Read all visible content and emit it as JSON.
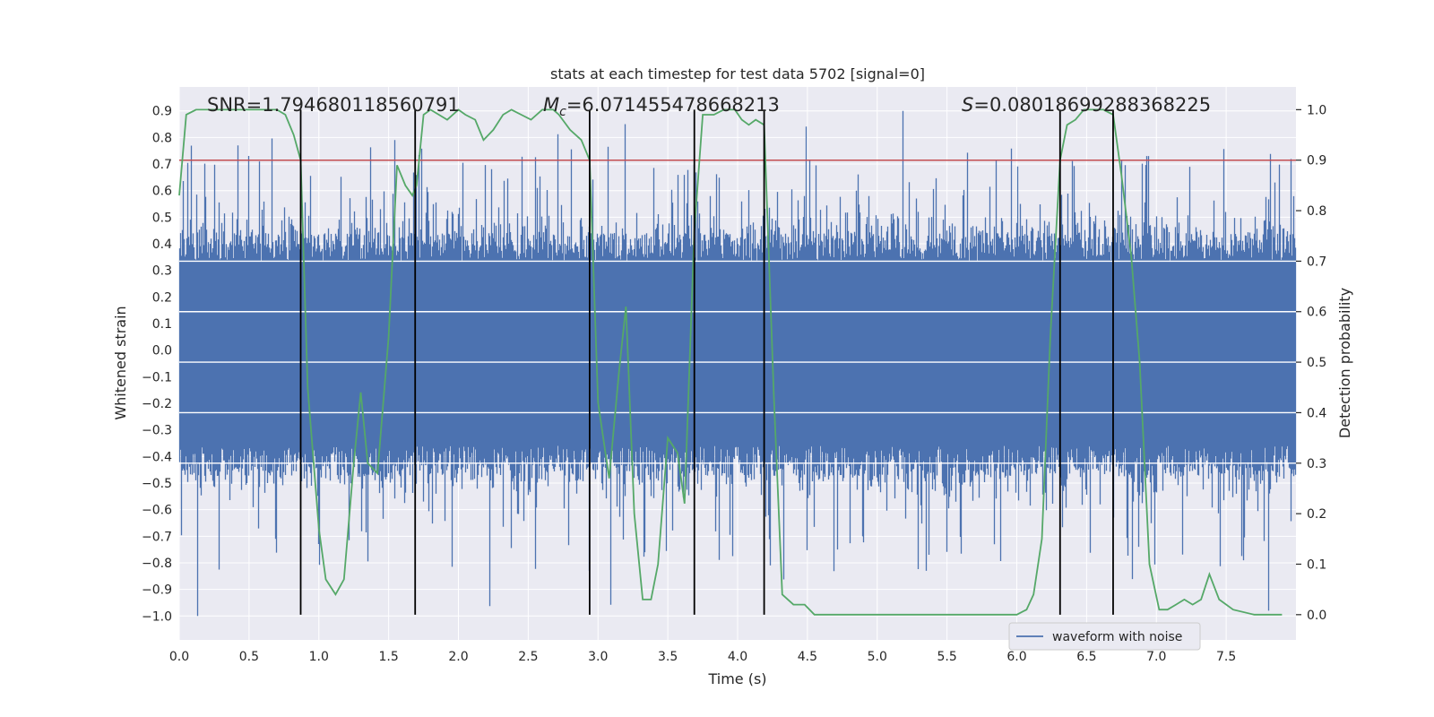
{
  "chart_data": {
    "type": "line",
    "title": "stats at each timestep for test data 5702 [signal=0]",
    "xlabel": "Time (s)",
    "ylabel_left": "Whitened strain",
    "ylabel_right": "Detection probability",
    "xlim": [
      0.0,
      8.0
    ],
    "ylim_left": [
      -1.09,
      0.99
    ],
    "ylim_right": [
      -0.05,
      1.045
    ],
    "x_ticks": [
      "0.0",
      "0.5",
      "1.0",
      "1.5",
      "2.0",
      "2.5",
      "3.0",
      "3.5",
      "4.0",
      "4.5",
      "5.0",
      "5.5",
      "6.0",
      "6.5",
      "7.0",
      "7.5"
    ],
    "x_tick_values": [
      0.0,
      0.5,
      1.0,
      1.5,
      2.0,
      2.5,
      3.0,
      3.5,
      4.0,
      4.5,
      5.0,
      5.5,
      6.0,
      6.5,
      7.0,
      7.5
    ],
    "y_left_ticks": [
      "0.9",
      "0.8",
      "0.7",
      "0.6",
      "0.5",
      "0.4",
      "0.3",
      "0.2",
      "0.1",
      "0.0",
      "−0.1",
      "−0.2",
      "−0.3",
      "−0.4",
      "−0.5",
      "−0.6",
      "−0.7",
      "−0.8",
      "−0.9",
      "−1.0"
    ],
    "y_left_tick_values": [
      0.9,
      0.8,
      0.7,
      0.6,
      0.5,
      0.4,
      0.3,
      0.2,
      0.1,
      0.0,
      -0.1,
      -0.2,
      -0.3,
      -0.4,
      -0.5,
      -0.6,
      -0.7,
      -0.8,
      -0.9,
      -1.0
    ],
    "y_right_ticks": [
      "1.0",
      "0.9",
      "0.8",
      "0.7",
      "0.6",
      "0.5",
      "0.4",
      "0.3",
      "0.2",
      "0.1",
      "0.0"
    ],
    "y_right_tick_values": [
      1.0,
      0.9,
      0.8,
      0.7,
      0.6,
      0.5,
      0.4,
      0.3,
      0.2,
      0.1,
      0.0
    ],
    "annotations": {
      "snr": "SNR=1.794680118560791",
      "mc_symbol": "M",
      "mc_subscript": "c",
      "mc_value": "=6.071455478668213",
      "s_symbol": "S",
      "s_value": "=0.08018699288368225"
    },
    "threshold_probability": 0.9,
    "vertical_lines": [
      0.87,
      1.69,
      2.94,
      3.69,
      4.19,
      6.31,
      6.69
    ],
    "waveform": {
      "name": "waveform with noise",
      "color": "#4c72b0",
      "sample_rate_hz": 4096,
      "duration_s": 8.0,
      "typical_envelope": [
        -0.45,
        0.42
      ],
      "extremes": [
        {
          "t": 0.13,
          "v": -1.0
        },
        {
          "t": 0.57,
          "v": 0.71
        },
        {
          "t": 1.54,
          "v": 0.79
        },
        {
          "t": 3.19,
          "v": 0.85
        },
        {
          "t": 5.18,
          "v": 0.9
        },
        {
          "t": 7.8,
          "v": -0.98
        },
        {
          "t": 5.35,
          "v": -0.83
        },
        {
          "t": 3.33,
          "v": -0.76
        }
      ]
    },
    "probability": {
      "color": "#55a868",
      "x": [
        0.0,
        0.05,
        0.12,
        0.2,
        0.3,
        0.45,
        0.6,
        0.7,
        0.76,
        0.82,
        0.87,
        0.92,
        1.0,
        1.05,
        1.12,
        1.18,
        1.25,
        1.3,
        1.35,
        1.42,
        1.5,
        1.56,
        1.62,
        1.67,
        1.7,
        1.75,
        1.8,
        1.86,
        1.92,
        2.0,
        2.05,
        2.12,
        2.18,
        2.25,
        2.32,
        2.38,
        2.45,
        2.52,
        2.6,
        2.68,
        2.72,
        2.8,
        2.88,
        2.94,
        3.0,
        3.08,
        3.15,
        3.2,
        3.26,
        3.32,
        3.38,
        3.43,
        3.5,
        3.57,
        3.62,
        3.69,
        3.75,
        3.83,
        3.9,
        3.98,
        4.03,
        4.08,
        4.13,
        4.19,
        4.26,
        4.32,
        4.4,
        4.48,
        4.55,
        4.7,
        4.85,
        5.0,
        5.2,
        5.4,
        5.6,
        5.8,
        6.0,
        6.07,
        6.12,
        6.18,
        6.24,
        6.31,
        6.36,
        6.42,
        6.48,
        6.55,
        6.62,
        6.69,
        6.75,
        6.82,
        6.88,
        6.95,
        7.02,
        7.08,
        7.14,
        7.2,
        7.26,
        7.32,
        7.38,
        7.45,
        7.55,
        7.7,
        7.9
      ],
      "y": [
        0.83,
        0.99,
        1.0,
        1.0,
        1.0,
        1.0,
        1.0,
        1.0,
        0.99,
        0.95,
        0.9,
        0.45,
        0.17,
        0.07,
        0.04,
        0.07,
        0.3,
        0.44,
        0.3,
        0.28,
        0.55,
        0.89,
        0.85,
        0.83,
        0.85,
        0.99,
        1.0,
        0.99,
        0.98,
        1.0,
        0.99,
        0.98,
        0.94,
        0.96,
        0.99,
        1.0,
        0.99,
        0.98,
        1.0,
        1.0,
        0.99,
        0.96,
        0.94,
        0.9,
        0.42,
        0.27,
        0.48,
        0.61,
        0.2,
        0.03,
        0.03,
        0.1,
        0.35,
        0.32,
        0.22,
        0.76,
        0.99,
        0.99,
        1.0,
        1.0,
        0.98,
        0.97,
        0.98,
        0.97,
        0.43,
        0.04,
        0.02,
        0.02,
        0.0,
        0.0,
        0.0,
        0.0,
        0.0,
        0.0,
        0.0,
        0.0,
        0.0,
        0.01,
        0.04,
        0.15,
        0.55,
        0.9,
        0.97,
        0.98,
        1.0,
        1.0,
        1.0,
        0.99,
        0.87,
        0.71,
        0.5,
        0.1,
        0.01,
        0.01,
        0.02,
        0.03,
        0.02,
        0.03,
        0.08,
        0.03,
        0.01,
        0.0,
        0.0
      ]
    },
    "legend": {
      "label": "waveform with noise",
      "placement": "lower-right"
    },
    "colors": {
      "background": "#eaeaf2",
      "grid": "#ffffff",
      "waveform": "#4c72b0",
      "probability": "#55a868",
      "threshold": "#c44e52",
      "vline": "#000000"
    }
  }
}
